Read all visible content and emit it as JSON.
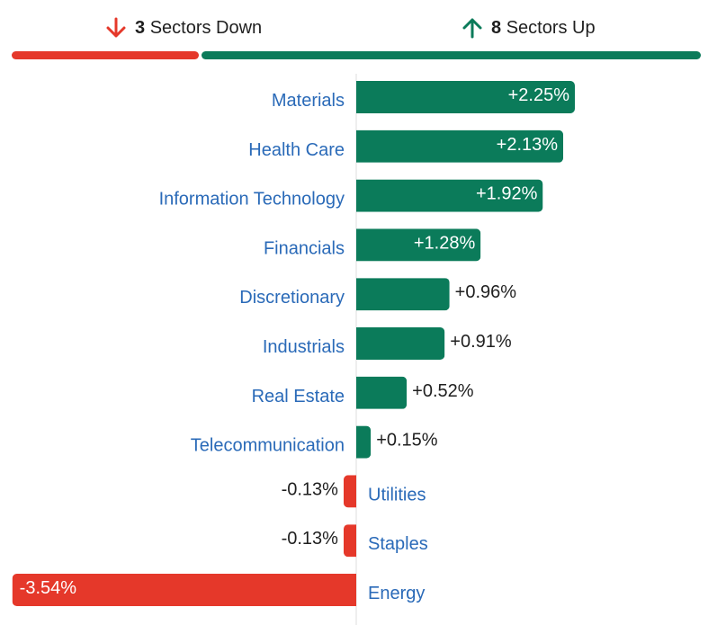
{
  "summary": {
    "down": {
      "count": "3",
      "label": "Sectors Down",
      "icon": "arrow-down-icon",
      "color": "#e5382a"
    },
    "up": {
      "count": "8",
      "label": "Sectors Up",
      "icon": "arrow-up-icon",
      "color": "#0b7b5a"
    }
  },
  "chart_data": {
    "type": "bar",
    "orientation": "horizontal",
    "unit": "%",
    "categories": [
      "Materials",
      "Health Care",
      "Information Technology",
      "Financials",
      "Discretionary",
      "Industrials",
      "Real Estate",
      "Telecommunication",
      "Utilities",
      "Staples",
      "Energy"
    ],
    "values": [
      2.25,
      2.13,
      1.92,
      1.28,
      0.96,
      0.91,
      0.52,
      0.15,
      -0.13,
      -0.13,
      -3.54
    ],
    "labels": [
      "+2.25%",
      "+2.13%",
      "+1.92%",
      "+1.28%",
      "+0.96%",
      "+0.91%",
      "+0.52%",
      "+0.15%",
      "-0.13%",
      "-0.13%",
      "-3.54%"
    ],
    "colors": {
      "positive": "#0b7b5a",
      "negative": "#e5382a",
      "category_label": "#2a6ab8"
    }
  }
}
